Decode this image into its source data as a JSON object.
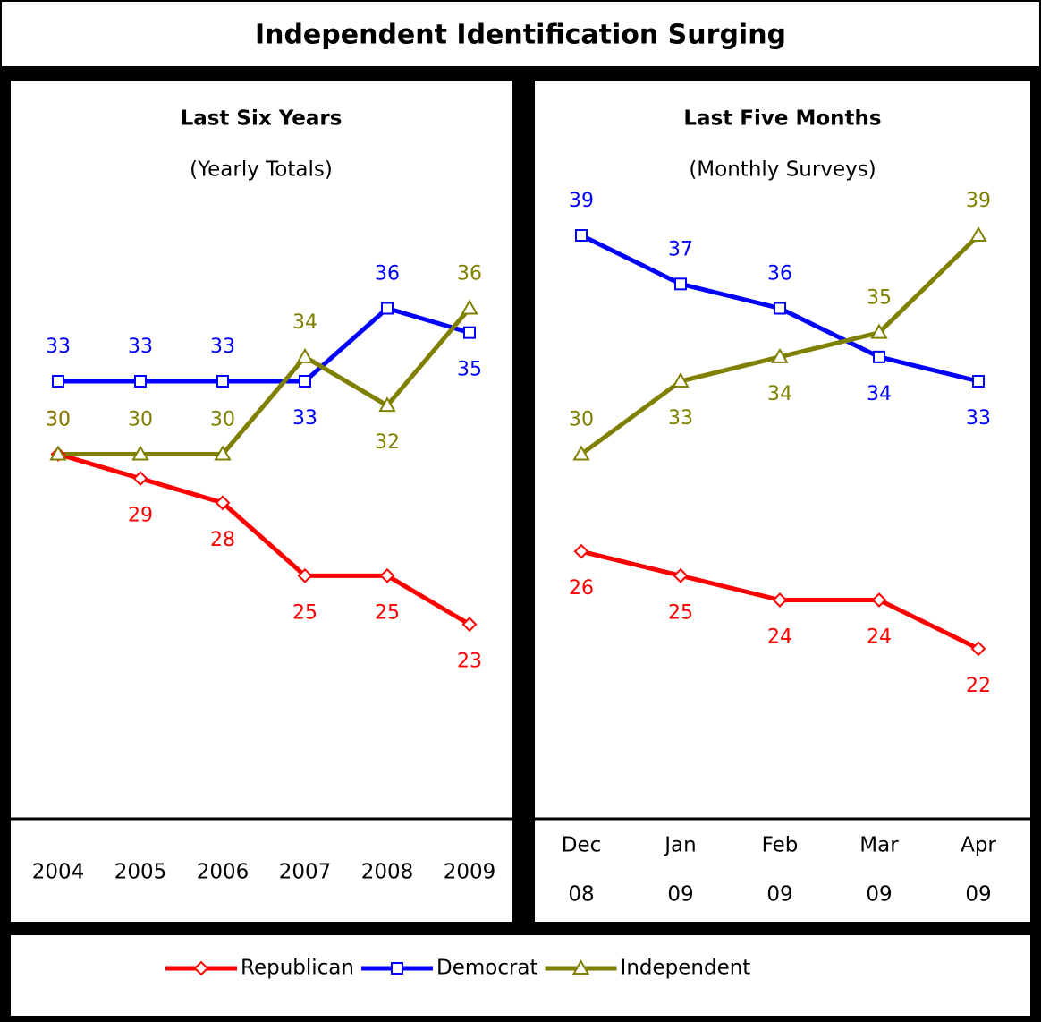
{
  "title": "Independent Identification Surging",
  "chart_data": [
    {
      "type": "line",
      "title": "Last Six Years",
      "subtitle": "(Yearly Totals)",
      "categories": [
        "2004",
        "2005",
        "2006",
        "2007",
        "2008",
        "2009"
      ],
      "ylim": [
        15,
        45
      ],
      "series": [
        {
          "name": "Republican",
          "color": "#ff0000",
          "marker": "diamond",
          "values": [
            30,
            29,
            28,
            25,
            25,
            23
          ]
        },
        {
          "name": "Democrat",
          "color": "#0000ff",
          "marker": "square",
          "values": [
            33,
            33,
            33,
            33,
            36,
            35
          ]
        },
        {
          "name": "Independent",
          "color": "#808000",
          "marker": "triangle",
          "values": [
            30,
            30,
            30,
            34,
            32,
            36
          ]
        }
      ]
    },
    {
      "type": "line",
      "title": "Last Five Months",
      "subtitle": "(Monthly Surveys)",
      "categories": [
        [
          "Dec",
          "08"
        ],
        [
          "Jan",
          "09"
        ],
        [
          "Feb",
          "09"
        ],
        [
          "Mar",
          "09"
        ],
        [
          "Apr",
          "09"
        ]
      ],
      "ylim": [
        15,
        45
      ],
      "series": [
        {
          "name": "Republican",
          "color": "#ff0000",
          "marker": "diamond",
          "values": [
            26,
            25,
            24,
            24,
            22
          ]
        },
        {
          "name": "Democrat",
          "color": "#0000ff",
          "marker": "square",
          "values": [
            39,
            37,
            36,
            34,
            33
          ]
        },
        {
          "name": "Independent",
          "color": "#808000",
          "marker": "triangle",
          "values": [
            30,
            33,
            34,
            35,
            39
          ]
        }
      ]
    }
  ]
}
